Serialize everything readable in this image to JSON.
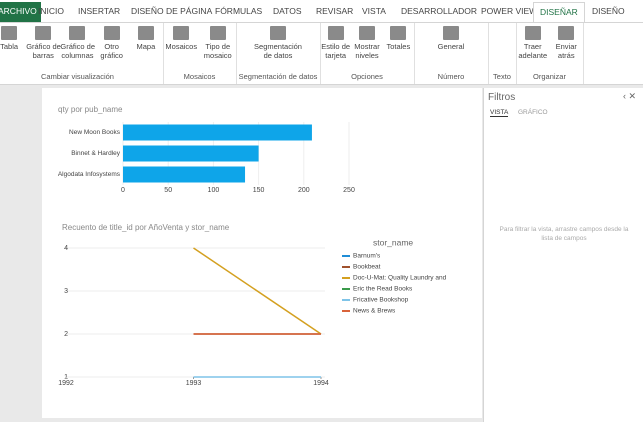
{
  "tabs": [
    "ARCHIVO",
    "INICIO",
    "INSERTAR",
    "DISEÑO DE PÁGINA",
    "FÓRMULAS",
    "DATOS",
    "REVISAR",
    "VISTA",
    "DESARROLLADOR",
    "POWER VIEW",
    "DISEÑAR",
    "DISEÑO"
  ],
  "selected_tab": 10,
  "ribbon_groups": [
    {
      "label": "Cambiar visualización",
      "buttons": [
        [
          "Tabla"
        ],
        [
          "Gráfico de",
          "barras"
        ],
        [
          "Gráfico de",
          "columnas"
        ],
        [
          "Otro",
          "gráfico"
        ],
        [
          "Mapa"
        ]
      ]
    },
    {
      "label": "Mosaicos",
      "buttons": [
        [
          "Mosaicos"
        ],
        [
          "Tipo de",
          "mosaico"
        ]
      ]
    },
    {
      "label": "Segmentación de datos",
      "buttons": [
        [
          "Segmentación",
          "de datos"
        ]
      ]
    },
    {
      "label": "Opciones",
      "buttons": [
        [
          "Estilo de",
          "tarjeta"
        ],
        [
          "Mostrar",
          "niveles"
        ],
        [
          "Totales"
        ]
      ]
    },
    {
      "label": "Número",
      "buttons": [
        [
          "General"
        ]
      ]
    },
    {
      "label": "Texto",
      "buttons": []
    },
    {
      "label": "Organizar",
      "buttons": [
        [
          "Traer",
          "adelante"
        ],
        [
          "Enviar",
          "atrás"
        ]
      ]
    }
  ],
  "filters": {
    "title": "Filtros",
    "tabs": [
      "VISTA",
      "GRÁFICO"
    ],
    "hint": "Para filtrar la vista, arrastre campos desde la lista de campos"
  },
  "chart_data": [
    {
      "type": "hbar",
      "title": "qty por pub_name",
      "categories": [
        "New Moon Books",
        "Binnet & Hardley",
        "Algodata Infosystems"
      ],
      "values": [
        209,
        150,
        135
      ],
      "color": "#0ea5e9",
      "xlim": [
        0,
        250
      ],
      "xticks": [
        0,
        50,
        100,
        150,
        200,
        250
      ],
      "grid": true
    },
    {
      "type": "line",
      "title": "Recuento de title_id por AñoVenta y stor_name",
      "x": [
        1992,
        1993,
        1994
      ],
      "xlim": [
        1992,
        1994
      ],
      "xticks": [
        1992,
        1993,
        1994
      ],
      "ylim": [
        1,
        4
      ],
      "yticks": [
        1,
        2,
        3,
        4
      ],
      "grid": true,
      "legend_title": "stor_name",
      "series": [
        {
          "name": "Barnum's",
          "color": "#1f8dd6",
          "values": [
            null,
            null,
            null
          ]
        },
        {
          "name": "Bookbeat",
          "color": "#a0522d",
          "values": [
            null,
            2,
            2
          ]
        },
        {
          "name": "Doc-U-Mat: Quality Laundry and",
          "color": "#d4a020",
          "values": [
            null,
            4,
            2
          ]
        },
        {
          "name": "Eric the Read Books",
          "color": "#3a9a4b",
          "values": [
            null,
            null,
            null
          ]
        },
        {
          "name": "Fricative Bookshop",
          "color": "#7fc4e8",
          "values": [
            null,
            1,
            1
          ]
        },
        {
          "name": "News & Brews",
          "color": "#d9633a",
          "values": [
            null,
            2,
            2
          ]
        }
      ]
    }
  ]
}
